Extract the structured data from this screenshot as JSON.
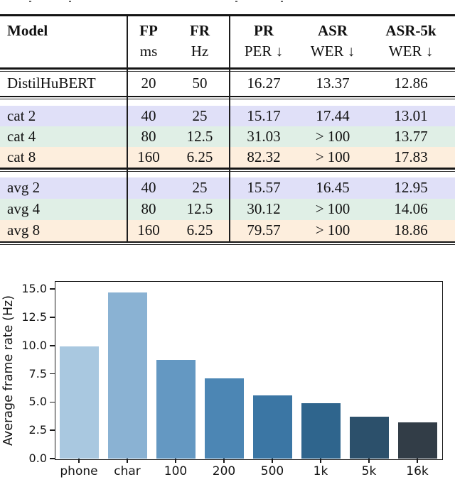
{
  "table": {
    "columns": [
      {
        "group": "Model",
        "sub": ""
      },
      {
        "group": "FP",
        "sub": "ms"
      },
      {
        "group": "FR",
        "sub": "Hz"
      },
      {
        "group": "PR",
        "sub": "PER ↓"
      },
      {
        "group": "ASR",
        "sub": "WER ↓"
      },
      {
        "group": "ASR-5k",
        "sub": "WER ↓"
      }
    ],
    "row_colors": {
      "lavender": "#e0e0f8",
      "mint": "#e0efe6",
      "peach": "#fdeedd",
      "white": "#ffffff"
    },
    "groups": [
      {
        "rows": [
          {
            "model": "DistilHuBERT",
            "fp": "20",
            "fr": "50",
            "pr": "16.27",
            "asr": "13.37",
            "asr5k": "12.86",
            "bg": "white"
          }
        ]
      },
      {
        "rows": [
          {
            "model": "cat 2",
            "fp": "40",
            "fr": "25",
            "pr": "15.17",
            "asr": "17.44",
            "asr5k": "13.01",
            "bg": "lavender"
          },
          {
            "model": "cat 4",
            "fp": "80",
            "fr": "12.5",
            "pr": "31.03",
            "asr": "> 100",
            "asr5k": "13.77",
            "bg": "mint"
          },
          {
            "model": "cat 8",
            "fp": "160",
            "fr": "6.25",
            "pr": "82.32",
            "asr": "> 100",
            "asr5k": "17.83",
            "bg": "peach"
          }
        ]
      },
      {
        "rows": [
          {
            "model": "avg 2",
            "fp": "40",
            "fr": "25",
            "pr": "15.57",
            "asr": "16.45",
            "asr5k": "12.95",
            "bg": "lavender"
          },
          {
            "model": "avg 4",
            "fp": "80",
            "fr": "12.5",
            "pr": "30.12",
            "asr": "> 100",
            "asr5k": "14.06",
            "bg": "mint"
          },
          {
            "model": "avg 8",
            "fp": "160",
            "fr": "6.25",
            "pr": "79.57",
            "asr": "> 100",
            "asr5k": "18.86",
            "bg": "peach"
          }
        ]
      }
    ]
  },
  "chart_data": {
    "type": "bar",
    "categories": [
      "phone",
      "char",
      "100",
      "200",
      "500",
      "1k",
      "5k",
      "16k"
    ],
    "values": [
      9.9,
      14.7,
      8.7,
      7.1,
      5.6,
      4.9,
      3.7,
      3.2
    ],
    "bar_colors": [
      "#a9c8e0",
      "#8ab2d3",
      "#6498c2",
      "#4c86b4",
      "#3b76a4",
      "#2f658d",
      "#2c506b",
      "#323d47"
    ],
    "title": "",
    "xlabel": "",
    "ylabel": "Average frame rate (Hz)",
    "ylim": [
      0,
      15.7
    ],
    "yticks": [
      0,
      2.5,
      5,
      7.5,
      10,
      12.5,
      15
    ],
    "ytick_labels": [
      "0.0",
      "2.5",
      "5.0",
      "7.5",
      "10.0",
      "12.5",
      "15.0"
    ],
    "grid": false,
    "legend": null
  }
}
